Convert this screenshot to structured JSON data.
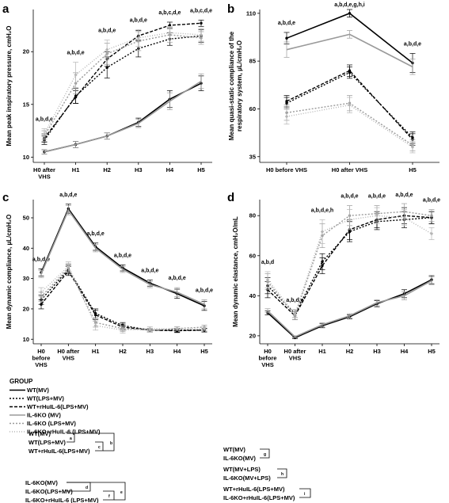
{
  "chart_data": [
    {
      "id": "a",
      "type": "line",
      "panel_label": "a",
      "ylabel": "Mean peak inspiratory pressure, cmH₂O",
      "ylim": [
        9.5,
        24
      ],
      "yticks": [
        10,
        15,
        20
      ],
      "categories": [
        "H0 after VHS",
        "H1",
        "H2",
        "H3",
        "H4",
        "H5"
      ],
      "annotations": [
        "a,b,d,e",
        "a,b,d,e",
        "a,b,d,e",
        "a,b,d,e",
        "a,b,c,d,e",
        "a,b,c,d,e"
      ],
      "series": [
        {
          "values": [
            10.5,
            11.2,
            12.0,
            13.3,
            15.5,
            17.0
          ],
          "err": [
            0.2,
            0.3,
            0.3,
            0.4,
            0.8,
            0.7
          ]
        },
        {
          "values": [
            11.6,
            15.8,
            18.5,
            20.3,
            21.2,
            21.5
          ],
          "err": [
            0.4,
            0.7,
            1.0,
            0.8,
            0.6,
            0.6
          ]
        },
        {
          "values": [
            11.8,
            15.7,
            19.3,
            21.5,
            22.5,
            22.7
          ],
          "err": [
            0.4,
            0.6,
            0.7,
            0.5,
            0.3,
            0.3
          ]
        },
        {
          "values": [
            10.5,
            11.2,
            12.0,
            13.2,
            15.3,
            17.2
          ],
          "err": [
            0.2,
            0.3,
            0.3,
            0.4,
            0.8,
            0.7
          ]
        },
        {
          "values": [
            12.0,
            17.0,
            19.8,
            21.0,
            21.6,
            21.3
          ],
          "err": [
            0.5,
            1.0,
            1.0,
            0.9,
            0.7,
            0.6
          ]
        },
        {
          "values": [
            12.2,
            17.8,
            20.2,
            21.3,
            21.8,
            21.6
          ],
          "err": [
            0.5,
            1.2,
            0.9,
            0.8,
            0.6,
            0.6
          ]
        }
      ]
    },
    {
      "id": "b",
      "type": "line",
      "panel_label": "b",
      "ylabel": "Mean quasi-static compliance of the respiratory system, µL/cmH₂O",
      "ylim": [
        32,
        112
      ],
      "yticks": [
        35,
        60,
        85,
        110
      ],
      "categories": [
        "H0 before VHS",
        "H0 after VHS",
        "H5"
      ],
      "annotations": [
        "a,b,d,e",
        "a,b,d,e,g,h,i",
        "a,b,d,e"
      ],
      "series": [
        {
          "values": [
            97,
            110,
            84
          ],
          "err": [
            3,
            2,
            5
          ]
        },
        {
          "values": [
            63,
            79,
            45
          ],
          "err": [
            3,
            3,
            3
          ]
        },
        {
          "values": [
            64,
            80,
            44
          ],
          "err": [
            3,
            3,
            3
          ]
        },
        {
          "values": [
            91,
            99,
            82
          ],
          "err": [
            4,
            2,
            4
          ]
        },
        {
          "values": [
            58,
            63,
            41
          ],
          "err": [
            4,
            4,
            3
          ]
        },
        {
          "values": [
            56,
            62,
            40
          ],
          "err": [
            4,
            4,
            3
          ]
        }
      ]
    },
    {
      "id": "c",
      "type": "line",
      "panel_label": "c",
      "ylabel": "Mean dynamic compliance, µL/cmH₂O",
      "ylim": [
        8.5,
        56
      ],
      "yticks": [
        10,
        20,
        30,
        40,
        50
      ],
      "categories": [
        "H0 before VHS",
        "H0 after VHS",
        "H1",
        "H2",
        "H3",
        "H4",
        "H5"
      ],
      "annotations": [
        "a,b,d,e",
        "a,b,d,e",
        "a,b,d,e",
        "a,b,d,e",
        "a,b,d,e",
        "a,b,d,e",
        "a,b,d,e"
      ],
      "series": [
        {
          "values": [
            32,
            53,
            40.5,
            33.5,
            28.5,
            25,
            21
          ],
          "err": [
            1.2,
            1.5,
            1.2,
            1.0,
            1.0,
            1.5,
            1.5
          ]
        },
        {
          "values": [
            23,
            33,
            18.5,
            14.5,
            13,
            13,
            13
          ],
          "err": [
            1.5,
            1.5,
            1.5,
            1.0,
            0.6,
            0.6,
            0.6
          ]
        },
        {
          "values": [
            21.5,
            32.5,
            18,
            14,
            13,
            12.8,
            13
          ],
          "err": [
            1.5,
            1.5,
            1.5,
            1.0,
            0.6,
            0.6,
            0.6
          ]
        },
        {
          "values": [
            31.5,
            52.5,
            40,
            33,
            28,
            25.5,
            21.5
          ],
          "err": [
            1.2,
            1.5,
            1.2,
            1.0,
            1.0,
            1.5,
            1.5
          ]
        },
        {
          "values": [
            24,
            33.5,
            15.5,
            13.5,
            13,
            13.5,
            14
          ],
          "err": [
            1.5,
            1.5,
            1.5,
            1.0,
            0.6,
            0.6,
            0.6
          ]
        },
        {
          "values": [
            25.5,
            34,
            14.5,
            13,
            13.5,
            13.5,
            13.5
          ],
          "err": [
            1.5,
            1.5,
            1.5,
            1.0,
            0.6,
            0.6,
            0.6
          ]
        }
      ]
    },
    {
      "id": "d",
      "type": "line",
      "panel_label": "d",
      "ylabel": "Mean dynamic elastance, cmH₂O/mL",
      "ylim": [
        16,
        88
      ],
      "yticks": [
        20,
        40,
        60,
        80
      ],
      "categories": [
        "H0 before VHS",
        "H0 after VHS",
        "H1",
        "H2",
        "H3",
        "H4",
        "H5"
      ],
      "annotations": [
        "a,b,d",
        "a,b,d,e",
        "a,b,d,e,h",
        "a,b,d,e",
        "a,b,d,e",
        "a,b,d,e",
        "a,b,d,e"
      ],
      "series": [
        {
          "values": [
            31.5,
            19,
            25,
            29.5,
            36,
            41,
            48
          ],
          "err": [
            1,
            0.5,
            1,
            1,
            1.5,
            2,
            2
          ]
        },
        {
          "values": [
            45,
            31,
            57,
            72,
            77,
            78,
            79
          ],
          "err": [
            4,
            2,
            4,
            5,
            4,
            4,
            3
          ]
        },
        {
          "values": [
            43,
            30,
            55,
            73,
            78,
            80,
            79
          ],
          "err": [
            4,
            2,
            4,
            5,
            4,
            4,
            3
          ]
        },
        {
          "values": [
            32.5,
            19.5,
            25.5,
            30,
            36.5,
            40,
            47.5
          ],
          "err": [
            1,
            0.5,
            1,
            1,
            1.5,
            2,
            2
          ]
        },
        {
          "values": [
            47,
            30,
            70,
            80,
            81,
            82,
            80
          ],
          "err": [
            4,
            2,
            6,
            5,
            4,
            4,
            3
          ]
        },
        {
          "values": [
            48,
            31,
            72,
            78,
            80,
            79,
            71
          ],
          "err": [
            4,
            2,
            6,
            5,
            4,
            4,
            3
          ]
        }
      ]
    }
  ],
  "legend": {
    "title": "GROUP",
    "items": [
      {
        "label": "WT(MV)",
        "color": "#000000",
        "dash": "",
        "width": 1.6
      },
      {
        "label": "WT(LPS+MV)",
        "color": "#000000",
        "dash": "2,2",
        "width": 1.4
      },
      {
        "label": "WT+rHuIL-6(LPS+MV)",
        "color": "#000000",
        "dash": "4,2",
        "width": 1.4
      },
      {
        "label": "IL-6KO (MV)",
        "color": "#9a9a9a",
        "dash": "",
        "width": 1.6
      },
      {
        "label": "IL-6KO (LPS+MV)",
        "color": "#9a9a9a",
        "dash": "2,2",
        "width": 1.4
      },
      {
        "label": "IL-6KO+rHuIL-6 (LPS+MV)",
        "color": "#b5b5b5",
        "dash": "1,2",
        "width": 1.4
      }
    ]
  },
  "comparisons": {
    "group1": {
      "labels": [
        "WT(MV)",
        "WT(LPS+MV)",
        "WT+rHuIL-6(LPS+MV)"
      ],
      "letters": [
        "a",
        "c",
        "b"
      ]
    },
    "group2": {
      "labels": [
        "IL-6KO(MV)",
        "IL-6KO(LPS+MV)",
        "IL-6KO+rHuIL-6 (LPS+MV)"
      ],
      "letters": [
        "d",
        "f",
        "e"
      ]
    },
    "pair_g": {
      "labels": [
        "WT(MV)",
        "IL-6KO(MV)"
      ],
      "letter": "g"
    },
    "pair_h": {
      "labels": [
        "WT(MV+LPS)",
        "IL-6KO(MV+LPS)"
      ],
      "letter": "h"
    },
    "pair_i": {
      "labels": [
        "WT+rHuIL-6(LPS+MV)",
        "IL-6KO+rHuIL-6(LPS+MV)"
      ],
      "letter": "i"
    }
  }
}
